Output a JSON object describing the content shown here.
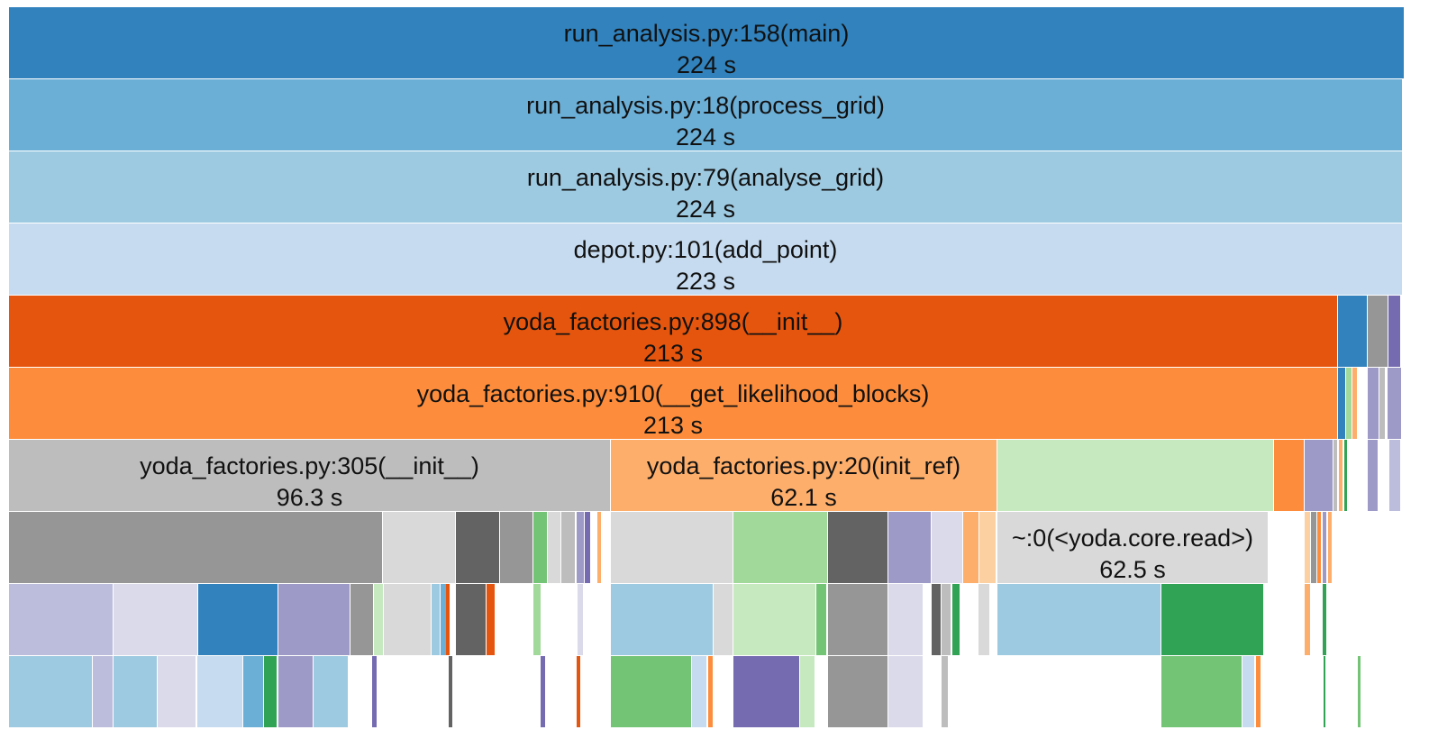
{
  "profile": {
    "unit": "s",
    "rows": [
      [
        {
          "label": "run_analysis.py:158(main)",
          "time": "224 s",
          "color": "#3182bd"
        }
      ],
      [
        {
          "label": "run_analysis.py:18(process_grid)",
          "time": "224 s",
          "color": "#6baed6"
        }
      ],
      [
        {
          "label": "run_analysis.py:79(analyse_grid)",
          "time": "224 s",
          "color": "#9ecae1"
        }
      ],
      [
        {
          "label": "depot.py:101(add_point)",
          "time": "223 s",
          "color": "#c6dbef"
        }
      ],
      [
        {
          "label": "yoda_factories.py:898(__init__)",
          "time": "213 s",
          "color": "#e6550d"
        },
        {
          "color": "#3182bd"
        },
        {
          "color": "#969696"
        },
        {
          "color": "#756bb1"
        }
      ],
      [
        {
          "label": "yoda_factories.py:910(__get_likelihood_blocks)",
          "time": "213 s",
          "color": "#fd8d3c"
        },
        {
          "color": "#3182bd"
        },
        {
          "color": "#a1d99b"
        },
        {
          "color": "#fdae6b"
        },
        {
          "color": "#9e9ac8"
        },
        {
          "color": "#bdbdbd"
        },
        {
          "color": "#9e9ac8"
        }
      ],
      [
        {
          "label": "yoda_factories.py:305(__init__)",
          "time": "96.3 s",
          "color": "#bdbdbd"
        },
        {
          "label": "yoda_factories.py:20(init_ref)",
          "time": "62.1 s",
          "color": "#fdae6b"
        },
        {
          "color": "#c7e9c0"
        },
        {
          "color": "#fd8d3c"
        },
        {
          "color": "#9e9ac8"
        },
        {
          "color": "#bdbdbd"
        },
        {
          "color": "#fdae6b"
        },
        {
          "color": "#31a354"
        },
        {
          "color": "#9e9ac8"
        },
        {
          "color": "#bcbddc"
        }
      ],
      [
        {
          "color": "#969696"
        },
        {
          "color": "#d9d9d9"
        },
        {
          "color": "#636363"
        },
        {
          "color": "#969696"
        },
        {
          "color": "#74c476"
        },
        {
          "color": "#d9d9d9"
        },
        {
          "color": "#bdbdbd"
        },
        {
          "color": "#9e9ac8"
        },
        {
          "color": "#756bb1"
        },
        {
          "color": "#fdae6b"
        },
        {
          "color": "#d9d9d9"
        },
        {
          "color": "#a1d99b"
        },
        {
          "color": "#636363"
        },
        {
          "color": "#9e9ac8"
        },
        {
          "color": "#dadaeb"
        },
        {
          "color": "#fdae6b"
        },
        {
          "color": "#fdd0a2"
        },
        {
          "label": "~:0(<yoda.core.read>)",
          "time": "62.5 s",
          "color": "#d9d9d9"
        },
        {
          "color": "#fdd0a2"
        },
        {
          "color": "#969696"
        },
        {
          "color": "#fd8d3c"
        },
        {
          "color": "#9e9ac8"
        },
        {
          "color": "#fdae6b"
        }
      ],
      [
        {
          "color": "#bcbddc"
        },
        {
          "color": "#dadaeb"
        },
        {
          "color": "#3182bd"
        },
        {
          "color": "#9e9ac8"
        },
        {
          "color": "#969696"
        },
        {
          "color": "#c7e9c0"
        },
        {
          "color": "#d9d9d9"
        },
        {
          "color": "#9ecae1"
        },
        {
          "color": "#6baed6"
        },
        {
          "color": "#e6550d"
        },
        {
          "color": "#636363"
        },
        {
          "color": "#e6550d"
        },
        {
          "color": "#a1d99b"
        },
        {
          "color": "#dadaeb"
        },
        {
          "color": "#9ecae1"
        },
        {
          "color": "#d9d9d9"
        },
        {
          "color": "#c7e9c0"
        },
        {
          "color": "#74c476"
        },
        {
          "color": "#969696"
        },
        {
          "color": "#dadaeb"
        },
        {
          "color": "#636363"
        },
        {
          "color": "#bdbdbd"
        },
        {
          "color": "#31a354"
        },
        {
          "color": "#d9d9d9"
        },
        {
          "color": "#9ecae1"
        },
        {
          "color": "#31a354"
        },
        {
          "color": "#fdae6b"
        },
        {
          "color": "#31a354"
        }
      ],
      [
        {
          "color": "#9ecae1"
        },
        {
          "color": "#bcbddc"
        },
        {
          "color": "#9ecae1"
        },
        {
          "color": "#dadaeb"
        },
        {
          "color": "#c6dbef"
        },
        {
          "color": "#6baed6"
        },
        {
          "color": "#31a354"
        },
        {
          "color": "#9e9ac8"
        },
        {
          "color": "#9ecae1"
        },
        {
          "color": "#756bb1"
        },
        {
          "color": "#756bb1"
        },
        {
          "color": "#e6550d"
        },
        {
          "color": "#636363"
        },
        {
          "color": "#74c476"
        },
        {
          "color": "#c6dbef"
        },
        {
          "color": "#fd8d3c"
        },
        {
          "color": "#756bb1"
        },
        {
          "color": "#c7e9c0"
        },
        {
          "color": "#969696"
        },
        {
          "color": "#dadaeb"
        },
        {
          "color": "#bdbdbd"
        },
        {
          "color": "#74c476"
        },
        {
          "color": "#c6dbef"
        },
        {
          "color": "#fd8d3c"
        },
        {
          "color": "#31a354"
        },
        {
          "color": "#74c476"
        }
      ]
    ]
  }
}
